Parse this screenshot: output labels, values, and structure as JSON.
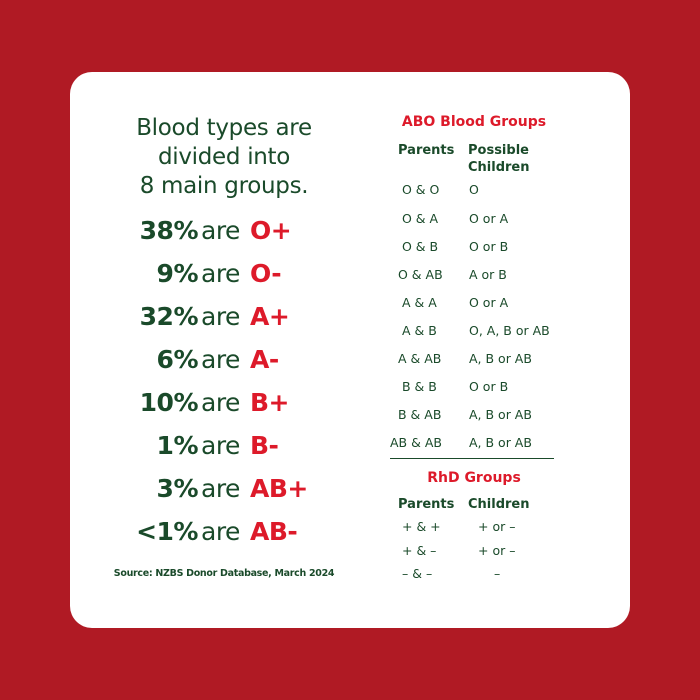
{
  "headline": [
    "Blood types are",
    "divided into",
    "8 main groups."
  ],
  "stats": [
    {
      "percent": "38%",
      "are": "are",
      "type": "O+"
    },
    {
      "percent": "9%",
      "are": "are",
      "type": "O-"
    },
    {
      "percent": "32%",
      "are": "are",
      "type": "A+"
    },
    {
      "percent": "6%",
      "are": "are",
      "type": "A-"
    },
    {
      "percent": "10%",
      "are": "are",
      "type": "B+"
    },
    {
      "percent": "1%",
      "are": "are",
      "type": "B-"
    },
    {
      "percent": "3%",
      "are": "are",
      "type": "AB+"
    },
    {
      "percent": "<1%",
      "are": "are",
      "type": "AB-"
    }
  ],
  "source": "Source: NZBS Donor Database, March 2024",
  "abo": {
    "title": "ABO Blood Groups",
    "parents_header": "Parents",
    "children_header_line1": "Possible",
    "children_header_line2": "Children",
    "rows": [
      {
        "parents": "O & O",
        "children": "O"
      },
      {
        "parents": "O & A",
        "children": "O or A"
      },
      {
        "parents": "O & B",
        "children": "O or B"
      },
      {
        "parents": "O & AB",
        "children": "A or B"
      },
      {
        "parents": "A & A",
        "children": "O or A"
      },
      {
        "parents": "A & B",
        "children": "O, A, B or AB"
      },
      {
        "parents": "A & AB",
        "children": "A, B or AB"
      },
      {
        "parents": "B & B",
        "children": "O or B"
      },
      {
        "parents": "B & AB",
        "children": "A, B or AB"
      },
      {
        "parents": "AB & AB",
        "children": "A, B or AB"
      }
    ]
  },
  "rhd": {
    "title": "RhD Groups",
    "parents_header": "Parents",
    "children_header": "Children",
    "rows": [
      {
        "parents": "+ & +",
        "children": "+ or –"
      },
      {
        "parents": "+ & –",
        "children": "+ or –"
      },
      {
        "parents": "– & –",
        "children": "–"
      }
    ]
  },
  "colors": {
    "background": "#b01a24",
    "card": "#ffffff",
    "green": "#1a4a2a",
    "red": "#dd1a2a"
  }
}
